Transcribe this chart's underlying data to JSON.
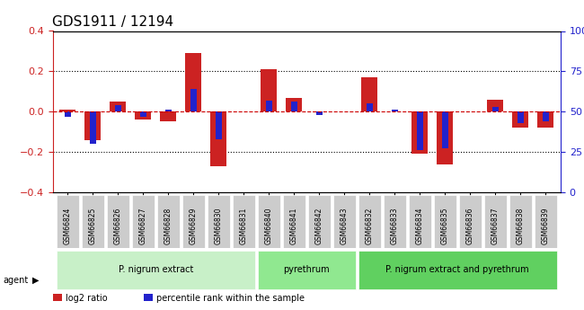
{
  "title": "GDS1911 / 12194",
  "samples": [
    "GSM66824",
    "GSM66825",
    "GSM66826",
    "GSM66827",
    "GSM66828",
    "GSM66829",
    "GSM66830",
    "GSM66831",
    "GSM66840",
    "GSM66841",
    "GSM66842",
    "GSM66843",
    "GSM66832",
    "GSM66833",
    "GSM66834",
    "GSM66835",
    "GSM66836",
    "GSM66837",
    "GSM66838",
    "GSM66839"
  ],
  "log2_ratio": [
    0.01,
    -0.14,
    0.05,
    -0.04,
    -0.05,
    0.29,
    -0.27,
    0.0,
    0.21,
    0.07,
    0.0,
    0.0,
    0.17,
    0.0,
    -0.21,
    -0.26,
    0.0,
    0.06,
    -0.08,
    -0.08
  ],
  "pct_rank": [
    47,
    30,
    54,
    47,
    51,
    64,
    33,
    50,
    57,
    56,
    48,
    50,
    55,
    51,
    26,
    27,
    50,
    53,
    43,
    44
  ],
  "groups": [
    {
      "label": "P. nigrum extract",
      "start": 0,
      "end": 7,
      "color": "#c8f0c8"
    },
    {
      "label": "pyrethrum",
      "start": 8,
      "end": 11,
      "color": "#90e890"
    },
    {
      "label": "P. nigrum extract and pyrethrum",
      "start": 12,
      "end": 19,
      "color": "#60d060"
    }
  ],
  "ylim_left": [
    -0.4,
    0.4
  ],
  "ylim_right": [
    0,
    100
  ],
  "left_ticks": [
    -0.4,
    -0.2,
    0.0,
    0.2,
    0.4
  ],
  "right_ticks": [
    0,
    25,
    50,
    75,
    100
  ],
  "bar_width": 0.35,
  "red_color": "#cc2222",
  "blue_color": "#2222cc",
  "dotted_line_color": "#000000",
  "zero_line_color": "#cc0000",
  "bg_color": "#ffffff",
  "plot_bg_color": "#ffffff"
}
